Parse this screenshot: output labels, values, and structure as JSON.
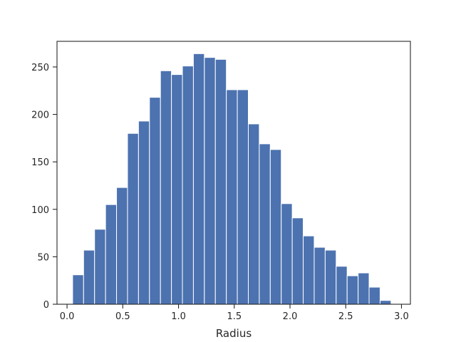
{
  "chart_data": {
    "type": "bar",
    "subtype": "histogram",
    "title": "",
    "xlabel": "Radius",
    "ylabel": "",
    "xlim": [
      -0.09,
      3.08
    ],
    "ylim": [
      0,
      277
    ],
    "xticks": [
      0.0,
      0.5,
      1.0,
      1.5,
      2.0,
      2.5,
      3.0
    ],
    "xtick_labels": [
      "0.0",
      "0.5",
      "1.0",
      "1.5",
      "2.0",
      "2.5",
      "3.0"
    ],
    "yticks": [
      0,
      50,
      100,
      150,
      200,
      250
    ],
    "ytick_labels": [
      "0",
      "50",
      "100",
      "150",
      "200",
      "250"
    ],
    "bin_start": 0.05,
    "bin_width": 0.0985,
    "values": [
      31,
      57,
      79,
      105,
      123,
      180,
      193,
      218,
      246,
      242,
      251,
      264,
      260,
      258,
      226,
      226,
      190,
      169,
      163,
      106,
      91,
      72,
      60,
      57,
      40,
      30,
      33,
      18,
      4
    ],
    "bar_color": "#4c72b0",
    "edge_color": "#ffffff",
    "grid": false,
    "legend": "none"
  }
}
